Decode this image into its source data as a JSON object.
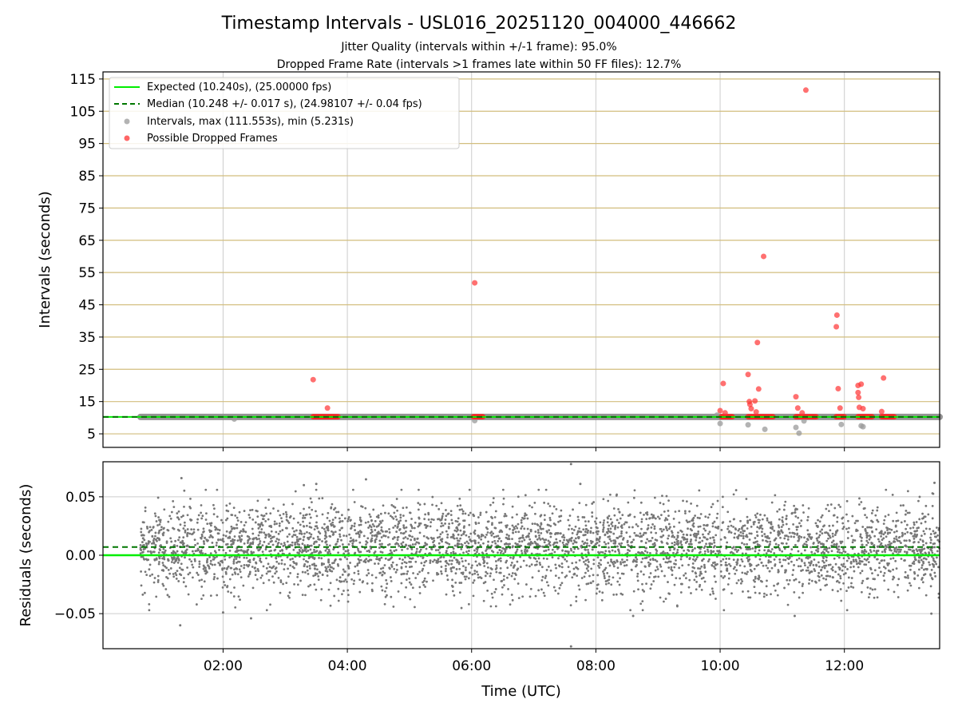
{
  "chart_data": [
    {
      "type": "scatter",
      "title": "Timestamp Intervals - USL016_20251120_004000_446662",
      "subtitle_lines": [
        "Jitter Quality (intervals within +/-1 frame): 95.0%",
        "Dropped Frame Rate (intervals >1 frames late within 50 FF files): 12.7%"
      ],
      "ylabel": "Intervals (seconds)",
      "xlim_hours": [
        0.067,
        13.533
      ],
      "ylim": [
        0.8,
        117.2
      ],
      "yticks": [
        5,
        15,
        25,
        35,
        45,
        55,
        65,
        75,
        85,
        95,
        105,
        115
      ],
      "ytick_labels": [
        "5",
        "15",
        "25",
        "35",
        "45",
        "55",
        "65",
        "75",
        "85",
        "95",
        "105",
        "115"
      ],
      "xticks_hours": [
        2,
        4,
        6,
        8,
        10,
        12
      ],
      "expected_interval": 10.24,
      "median_interval": 10.248,
      "normal_band": {
        "x_start_hours": 0.67,
        "x_end_hours": 13.533,
        "y": 10.24
      },
      "legend": [
        {
          "label": "Expected (10.240s), (25.00000 fps)",
          "marker": "line",
          "color": "#00ee00"
        },
        {
          "label": "Median (10.248 +/- 0.017 s), (24.98107 +/- 0.04 fps)",
          "marker": "dashed",
          "color": "#007700"
        },
        {
          "label": "Intervals, max (111.553s), min (5.231s)",
          "marker": "dot",
          "color": "#999999"
        },
        {
          "label": "Possible Dropped Frames",
          "marker": "dot",
          "color": "#ff3333"
        }
      ],
      "intervals_outliers": [
        {
          "t": 9.95,
          "y": 10.8
        },
        {
          "t": 10.0,
          "y": 8.2
        },
        {
          "t": 10.45,
          "y": 7.8
        },
        {
          "t": 10.72,
          "y": 6.4
        },
        {
          "t": 11.22,
          "y": 7.0
        },
        {
          "t": 11.27,
          "y": 5.2
        },
        {
          "t": 11.35,
          "y": 9.0
        },
        {
          "t": 11.95,
          "y": 7.9
        },
        {
          "t": 12.27,
          "y": 7.5
        },
        {
          "t": 12.3,
          "y": 7.2
        },
        {
          "t": 6.05,
          "y": 9.1
        },
        {
          "t": 2.18,
          "y": 9.6
        }
      ],
      "dropped_frames": [
        {
          "t": 3.45,
          "y": 21.8
        },
        {
          "t": 3.68,
          "y": 13.0
        },
        {
          "t": 6.05,
          "y": 51.8
        },
        {
          "t": 10.0,
          "y": 12.2
        },
        {
          "t": 10.05,
          "y": 20.6
        },
        {
          "t": 10.08,
          "y": 11.5
        },
        {
          "t": 10.45,
          "y": 23.4
        },
        {
          "t": 10.47,
          "y": 15.0
        },
        {
          "t": 10.48,
          "y": 14.1
        },
        {
          "t": 10.5,
          "y": 12.8
        },
        {
          "t": 10.56,
          "y": 15.2
        },
        {
          "t": 10.58,
          "y": 11.8
        },
        {
          "t": 10.6,
          "y": 33.3
        },
        {
          "t": 10.62,
          "y": 18.9
        },
        {
          "t": 10.7,
          "y": 60.0
        },
        {
          "t": 11.22,
          "y": 16.5
        },
        {
          "t": 11.25,
          "y": 13.0
        },
        {
          "t": 11.32,
          "y": 11.5
        },
        {
          "t": 11.38,
          "y": 111.553
        },
        {
          "t": 11.88,
          "y": 41.8
        },
        {
          "t": 11.87,
          "y": 38.2
        },
        {
          "t": 11.9,
          "y": 19.0
        },
        {
          "t": 11.93,
          "y": 13.0
        },
        {
          "t": 12.22,
          "y": 20.0
        },
        {
          "t": 12.22,
          "y": 17.8
        },
        {
          "t": 12.23,
          "y": 16.3
        },
        {
          "t": 12.24,
          "y": 13.2
        },
        {
          "t": 12.27,
          "y": 20.4
        },
        {
          "t": 12.3,
          "y": 12.8
        },
        {
          "t": 12.6,
          "y": 11.9
        },
        {
          "t": 12.63,
          "y": 22.3
        }
      ],
      "dropped_clusters": [
        {
          "t_start": 3.45,
          "t_end": 3.85,
          "y": 10.3
        },
        {
          "t_start": 6.03,
          "t_end": 6.2,
          "y": 10.3
        },
        {
          "t_start": 10.02,
          "t_end": 10.2,
          "y": 10.3
        },
        {
          "t_start": 10.45,
          "t_end": 10.85,
          "y": 10.3
        },
        {
          "t_start": 11.22,
          "t_end": 11.55,
          "y": 10.3
        },
        {
          "t_start": 11.87,
          "t_end": 12.0,
          "y": 10.3
        },
        {
          "t_start": 12.22,
          "t_end": 12.45,
          "y": 10.3
        },
        {
          "t_start": 12.6,
          "t_end": 12.8,
          "y": 10.3
        }
      ]
    },
    {
      "type": "scatter",
      "ylabel": "Residuals (seconds)",
      "xlabel": "Time (UTC)",
      "xlim_hours": [
        0.067,
        13.533
      ],
      "ylim": [
        -0.08,
        0.08
      ],
      "yticks": [
        0.05,
        0.0,
        -0.05
      ],
      "ytick_labels": [
        "0.05",
        "0.00",
        "−0.05"
      ],
      "xticks_hours": [
        2,
        4,
        6,
        8,
        10,
        12
      ],
      "xtick_labels": [
        "02:00",
        "04:00",
        "06:00",
        "08:00",
        "10:00",
        "12:00"
      ],
      "expected_line": 0.0,
      "median_line": 0.007,
      "residual_noise": {
        "t_start": 0.67,
        "t_end": 13.533,
        "count": 4200,
        "mean": 0.007,
        "std": 0.019,
        "seed": 1234567
      },
      "residual_extremes": [
        {
          "t": 1.33,
          "y": 0.066
        },
        {
          "t": 1.31,
          "y": -0.06
        },
        {
          "t": 2.0,
          "y": -0.049
        },
        {
          "t": 2.45,
          "y": -0.054
        },
        {
          "t": 3.3,
          "y": 0.06
        },
        {
          "t": 3.5,
          "y": 0.061
        },
        {
          "t": 4.3,
          "y": 0.065
        },
        {
          "t": 7.6,
          "y": 0.078
        },
        {
          "t": 7.6,
          "y": -0.078
        },
        {
          "t": 7.75,
          "y": 0.061
        },
        {
          "t": 8.6,
          "y": -0.052
        },
        {
          "t": 11.2,
          "y": -0.052
        },
        {
          "t": 13.45,
          "y": 0.062
        },
        {
          "t": 13.4,
          "y": -0.05
        },
        {
          "t": 13.55,
          "y": -0.033
        }
      ]
    }
  ]
}
